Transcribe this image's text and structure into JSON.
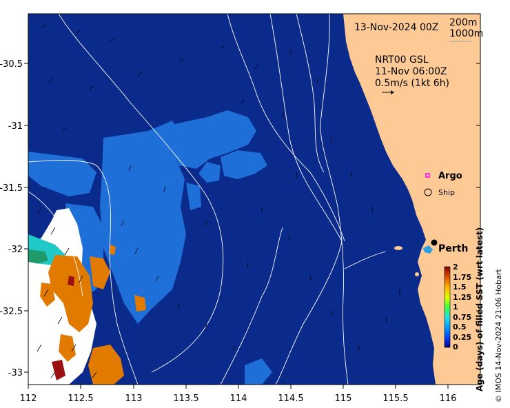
{
  "header": {
    "date_label": "13-Nov-2024 00Z",
    "contour_labels": [
      "200m",
      "1000m"
    ]
  },
  "current_legend": {
    "line1": "NRT00 GSL",
    "line2": "11-Nov 06:00Z",
    "line3": "0.5m/s (1kt 6h)"
  },
  "symbols": {
    "argo_label": "Argo",
    "ship_label": "Ship",
    "argo_color": "#ff00ff"
  },
  "places": [
    {
      "name": "Perth",
      "lon": 115.86,
      "lat": -31.95
    }
  ],
  "axes": {
    "x_ticks": [
      "112",
      "112.5",
      "113",
      "113.5",
      "114",
      "114.5",
      "115",
      "115.5",
      "116"
    ],
    "y_ticks": [
      "-30.5",
      "-31",
      "-31.5",
      "-32",
      "-32.5",
      "-33"
    ]
  },
  "colorbar": {
    "title": "Age (days) of filled SST (wrt latest)",
    "ticks": [
      "2",
      "1.75",
      "1.5",
      "1.25",
      "1",
      "0.75",
      "0.5",
      "0.25",
      "0"
    ]
  },
  "credit": "© IMOS 14-Nov-2024 21:06 Hobart",
  "colors": {
    "ocean_age_0": "#0a2a8c",
    "ocean_age_025": "#1e6fd8",
    "land": "#fdc994",
    "no_data": "#ffffff"
  }
}
